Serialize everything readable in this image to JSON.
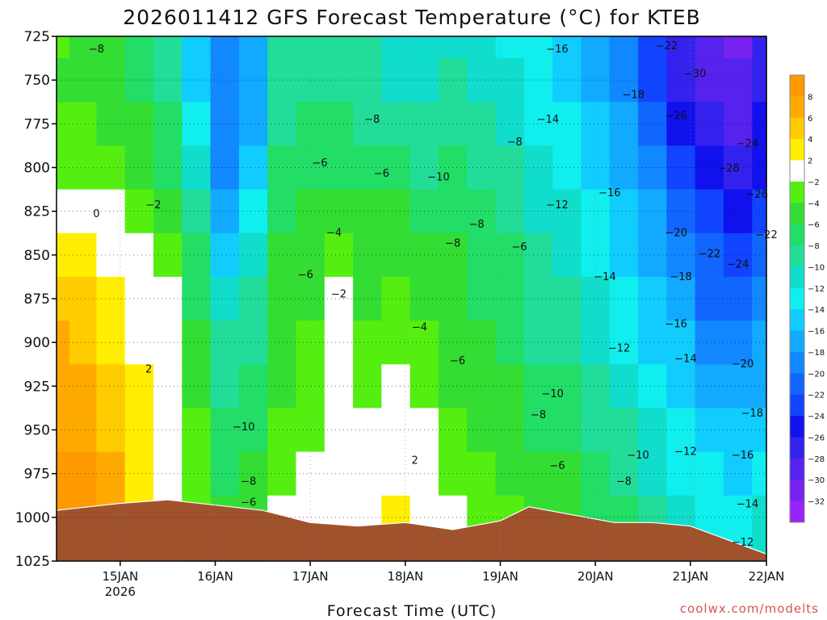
{
  "chart_data": {
    "type": "heatmap",
    "title": "2026011412 GFS Forecast Temperature (°C) for KTEB",
    "xlabel": "Forecast Time (UTC)",
    "ylabel": "",
    "credit": "coolwx.com/modelts",
    "y_ticks": [
      725,
      750,
      775,
      800,
      825,
      850,
      875,
      900,
      925,
      950,
      975,
      1000,
      1025
    ],
    "y_range": [
      725,
      1025
    ],
    "x_range_days": [
      0.33,
      7.8
    ],
    "x_ticks": [
      {
        "day": 1,
        "label": "15JAN",
        "sub": "2026"
      },
      {
        "day": 2,
        "label": "16JAN",
        "sub": ""
      },
      {
        "day": 3,
        "label": "17JAN",
        "sub": ""
      },
      {
        "day": 4,
        "label": "18JAN",
        "sub": ""
      },
      {
        "day": 5,
        "label": "19JAN",
        "sub": ""
      },
      {
        "day": 6,
        "label": "20JAN",
        "sub": ""
      },
      {
        "day": 7,
        "label": "21JAN",
        "sub": ""
      },
      {
        "day": 8,
        "label": "22JAN",
        "sub": ""
      }
    ],
    "colorbar": {
      "bands": [
        {
          "lo": 8,
          "hi": 10,
          "color": "#ff9900"
        },
        {
          "lo": 6,
          "hi": 8,
          "color": "#ffaa00"
        },
        {
          "lo": 4,
          "hi": 6,
          "color": "#ffcc00"
        },
        {
          "lo": 2,
          "hi": 4,
          "color": "#ffee00"
        },
        {
          "lo": -2,
          "hi": 2,
          "color": "#ffffff"
        },
        {
          "lo": -4,
          "hi": -2,
          "color": "#55ee11"
        },
        {
          "lo": -6,
          "hi": -4,
          "color": "#33dd33"
        },
        {
          "lo": -8,
          "hi": -6,
          "color": "#22dd66"
        },
        {
          "lo": -10,
          "hi": -8,
          "color": "#22dd99"
        },
        {
          "lo": -12,
          "hi": -10,
          "color": "#11ddcc"
        },
        {
          "lo": -14,
          "hi": -12,
          "color": "#11eeee"
        },
        {
          "lo": -16,
          "hi": -14,
          "color": "#11ccff"
        },
        {
          "lo": -18,
          "hi": -16,
          "color": "#11aaff"
        },
        {
          "lo": -20,
          "hi": -18,
          "color": "#1188ff"
        },
        {
          "lo": -22,
          "hi": -20,
          "color": "#1166ff"
        },
        {
          "lo": -24,
          "hi": -22,
          "color": "#1144ff"
        },
        {
          "lo": -26,
          "hi": -24,
          "color": "#1111ee"
        },
        {
          "lo": -28,
          "hi": -26,
          "color": "#3322ee"
        },
        {
          "lo": -30,
          "hi": -28,
          "color": "#5522ee"
        },
        {
          "lo": -32,
          "hi": -30,
          "color": "#7722ee"
        },
        {
          "lo": -34,
          "hi": -32,
          "color": "#9922ff"
        }
      ],
      "labels": [
        8,
        6,
        4,
        2,
        -2,
        -4,
        -6,
        -8,
        -10,
        -12,
        -14,
        -16,
        -18,
        -20,
        -22,
        -24,
        -26,
        -28,
        -30,
        -32
      ]
    },
    "columns": [
      {
        "day": 0.33,
        "temps": [
          -4,
          -5,
          -4,
          -3,
          0,
          3,
          5,
          6,
          7,
          7,
          8,
          8
        ]
      },
      {
        "day": 0.6,
        "temps": [
          -5,
          -5,
          -4,
          -3,
          -1,
          2,
          4,
          5,
          6,
          7,
          8,
          8
        ]
      },
      {
        "day": 0.9,
        "temps": [
          -6,
          -6,
          -5,
          -4,
          -2,
          1,
          2,
          3,
          4,
          5,
          6,
          6
        ]
      },
      {
        "day": 1.2,
        "temps": [
          -7,
          -7,
          -6,
          -5,
          -3,
          -1,
          0,
          1,
          2,
          3,
          3,
          3
        ]
      },
      {
        "day": 1.5,
        "temps": [
          -9,
          -9,
          -8,
          -7,
          -5,
          -3,
          -2,
          -1,
          0,
          1,
          1,
          1
        ]
      },
      {
        "day": 1.8,
        "temps": [
          -16,
          -15,
          -14,
          -12,
          -10,
          -8,
          -7,
          -6,
          -5,
          -4,
          -3,
          -3
        ]
      },
      {
        "day": 2.1,
        "temps": [
          -20,
          -20,
          -20,
          -19,
          -18,
          -15,
          -12,
          -10,
          -9,
          -8,
          -7,
          -6
        ]
      },
      {
        "day": 2.4,
        "temps": [
          -18,
          -18,
          -18,
          -16,
          -14,
          -12,
          -10,
          -9,
          -8,
          -7,
          -6,
          -5
        ]
      },
      {
        "day": 2.7,
        "temps": [
          -10,
          -10,
          -9,
          -8,
          -7,
          -6,
          -6,
          -6,
          -5,
          -4,
          -3,
          -2
        ]
      },
      {
        "day": 3.0,
        "temps": [
          -9,
          -9,
          -8,
          -7,
          -6,
          -5,
          -5,
          -4,
          -4,
          -3,
          -2,
          -1
        ]
      },
      {
        "day": 3.3,
        "temps": [
          -9,
          -9,
          -8,
          -7,
          -5,
          -3,
          -1,
          0,
          0,
          0,
          0,
          0
        ]
      },
      {
        "day": 3.6,
        "temps": [
          -10,
          -10,
          -9,
          -8,
          -6,
          -5,
          -5,
          -4,
          -3,
          -2,
          -1,
          0
        ]
      },
      {
        "day": 3.9,
        "temps": [
          -11,
          -11,
          -9,
          -8,
          -6,
          -5,
          -4,
          -3,
          -1,
          0,
          1,
          3
        ]
      },
      {
        "day": 4.2,
        "temps": [
          -11,
          -11,
          -10,
          -9,
          -7,
          -6,
          -5,
          -4,
          -3,
          -2,
          -1,
          0
        ]
      },
      {
        "day": 4.5,
        "temps": [
          -11,
          -10,
          -9,
          -8,
          -7,
          -6,
          -6,
          -5,
          -5,
          -4,
          -3,
          -2
        ]
      },
      {
        "day": 4.8,
        "temps": [
          -12,
          -11,
          -10,
          -9,
          -8,
          -7,
          -7,
          -6,
          -6,
          -5,
          -4,
          -3
        ]
      },
      {
        "day": 5.1,
        "temps": [
          -13,
          -12,
          -11,
          -10,
          -9,
          -8,
          -7,
          -7,
          -6,
          -6,
          -5,
          -4
        ]
      },
      {
        "day": 5.4,
        "temps": [
          -14,
          -14,
          -13,
          -12,
          -11,
          -10,
          -9,
          -9,
          -8,
          -7,
          -6,
          -5
        ]
      },
      {
        "day": 5.7,
        "temps": [
          -16,
          -15,
          -14,
          -13,
          -12,
          -11,
          -10,
          -9,
          -8,
          -7,
          -6,
          -6
        ]
      },
      {
        "day": 6.0,
        "temps": [
          -17,
          -17,
          -16,
          -15,
          -14,
          -13,
          -12,
          -11,
          -10,
          -9,
          -8,
          -7
        ]
      },
      {
        "day": 6.3,
        "temps": [
          -20,
          -19,
          -18,
          -17,
          -16,
          -15,
          -14,
          -13,
          -11,
          -10,
          -9,
          -8
        ]
      },
      {
        "day": 6.6,
        "temps": [
          -24,
          -23,
          -21,
          -19,
          -18,
          -17,
          -16,
          -15,
          -14,
          -12,
          -11,
          -10
        ]
      },
      {
        "day": 6.9,
        "temps": [
          -28,
          -27,
          -25,
          -23,
          -21,
          -19,
          -18,
          -16,
          -15,
          -14,
          -13,
          -12
        ]
      },
      {
        "day": 7.2,
        "temps": [
          -30,
          -30,
          -28,
          -26,
          -24,
          -22,
          -21,
          -19,
          -18,
          -16,
          -14,
          -13
        ]
      },
      {
        "day": 7.5,
        "temps": [
          -31,
          -30,
          -29,
          -27,
          -25,
          -24,
          -22,
          -20,
          -18,
          -16,
          -15,
          -13
        ]
      },
      {
        "day": 7.8,
        "temps": [
          -28,
          -27,
          -26,
          -25,
          -23,
          -22,
          -20,
          -18,
          -17,
          -15,
          -13,
          -12
        ]
      }
    ],
    "surface_pressure": [
      {
        "day": 0.33,
        "p": 996
      },
      {
        "day": 1.0,
        "p": 992
      },
      {
        "day": 1.5,
        "p": 990
      },
      {
        "day": 2.0,
        "p": 993
      },
      {
        "day": 2.5,
        "p": 996
      },
      {
        "day": 3.0,
        "p": 1003
      },
      {
        "day": 3.5,
        "p": 1005
      },
      {
        "day": 4.0,
        "p": 1003
      },
      {
        "day": 4.5,
        "p": 1007
      },
      {
        "day": 5.0,
        "p": 1002
      },
      {
        "day": 5.3,
        "p": 994
      },
      {
        "day": 5.8,
        "p": 999
      },
      {
        "day": 6.2,
        "p": 1003
      },
      {
        "day": 6.6,
        "p": 1003
      },
      {
        "day": 7.0,
        "p": 1005
      },
      {
        "day": 7.4,
        "p": 1013
      },
      {
        "day": 7.8,
        "p": 1021
      }
    ],
    "contour_labels": [
      {
        "value": -8,
        "day": 0.75,
        "p": 732
      },
      {
        "value": -16,
        "day": 5.6,
        "p": 732
      },
      {
        "value": -22,
        "day": 6.75,
        "p": 730
      },
      {
        "value": -30,
        "day": 7.05,
        "p": 746
      },
      {
        "value": -18,
        "day": 6.4,
        "p": 758
      },
      {
        "value": -26,
        "day": 6.85,
        "p": 770
      },
      {
        "value": -14,
        "day": 5.5,
        "p": 772
      },
      {
        "value": -8,
        "day": 3.65,
        "p": 772
      },
      {
        "value": -8,
        "day": 5.15,
        "p": 785
      },
      {
        "value": -24,
        "day": 7.6,
        "p": 786
      },
      {
        "value": -6,
        "day": 3.1,
        "p": 797
      },
      {
        "value": -28,
        "day": 7.4,
        "p": 800
      },
      {
        "value": -6,
        "day": 3.75,
        "p": 803
      },
      {
        "value": -10,
        "day": 4.35,
        "p": 805
      },
      {
        "value": -26,
        "day": 7.7,
        "p": 815
      },
      {
        "value": -16,
        "day": 6.15,
        "p": 814
      },
      {
        "value": -2,
        "day": 1.35,
        "p": 821
      },
      {
        "value": 0,
        "day": 0.75,
        "p": 826
      },
      {
        "value": -12,
        "day": 5.6,
        "p": 821
      },
      {
        "value": -8,
        "day": 4.75,
        "p": 832
      },
      {
        "value": -4,
        "day": 3.25,
        "p": 837
      },
      {
        "value": -22,
        "day": 7.8,
        "p": 838
      },
      {
        "value": -20,
        "day": 6.85,
        "p": 837
      },
      {
        "value": -8,
        "day": 4.5,
        "p": 843
      },
      {
        "value": -6,
        "day": 5.2,
        "p": 845
      },
      {
        "value": -22,
        "day": 7.2,
        "p": 849
      },
      {
        "value": -24,
        "day": 7.5,
        "p": 855
      },
      {
        "value": -6,
        "day": 2.95,
        "p": 861
      },
      {
        "value": -14,
        "day": 6.1,
        "p": 862
      },
      {
        "value": -18,
        "day": 6.9,
        "p": 862
      },
      {
        "value": -2,
        "day": 3.3,
        "p": 872
      },
      {
        "value": -16,
        "day": 6.85,
        "p": 889
      },
      {
        "value": -4,
        "day": 4.15,
        "p": 891
      },
      {
        "value": -12,
        "day": 6.25,
        "p": 903
      },
      {
        "value": -14,
        "day": 6.95,
        "p": 909
      },
      {
        "value": -6,
        "day": 4.55,
        "p": 910
      },
      {
        "value": -20,
        "day": 7.55,
        "p": 912
      },
      {
        "value": 2,
        "day": 1.3,
        "p": 915
      },
      {
        "value": -10,
        "day": 5.55,
        "p": 929
      },
      {
        "value": -8,
        "day": 5.4,
        "p": 941
      },
      {
        "value": -18,
        "day": 7.65,
        "p": 940
      },
      {
        "value": -10,
        "day": 2.3,
        "p": 948
      },
      {
        "value": -10,
        "day": 6.45,
        "p": 964
      },
      {
        "value": -12,
        "day": 6.95,
        "p": 962
      },
      {
        "value": -16,
        "day": 7.55,
        "p": 964
      },
      {
        "value": 2,
        "day": 4.1,
        "p": 967
      },
      {
        "value": -6,
        "day": 5.6,
        "p": 970
      },
      {
        "value": -8,
        "day": 6.3,
        "p": 979
      },
      {
        "value": -8,
        "day": 2.35,
        "p": 979
      },
      {
        "value": -6,
        "day": 2.35,
        "p": 991
      },
      {
        "value": -14,
        "day": 7.6,
        "p": 992
      },
      {
        "value": -12,
        "day": 7.55,
        "p": 1014
      }
    ]
  }
}
